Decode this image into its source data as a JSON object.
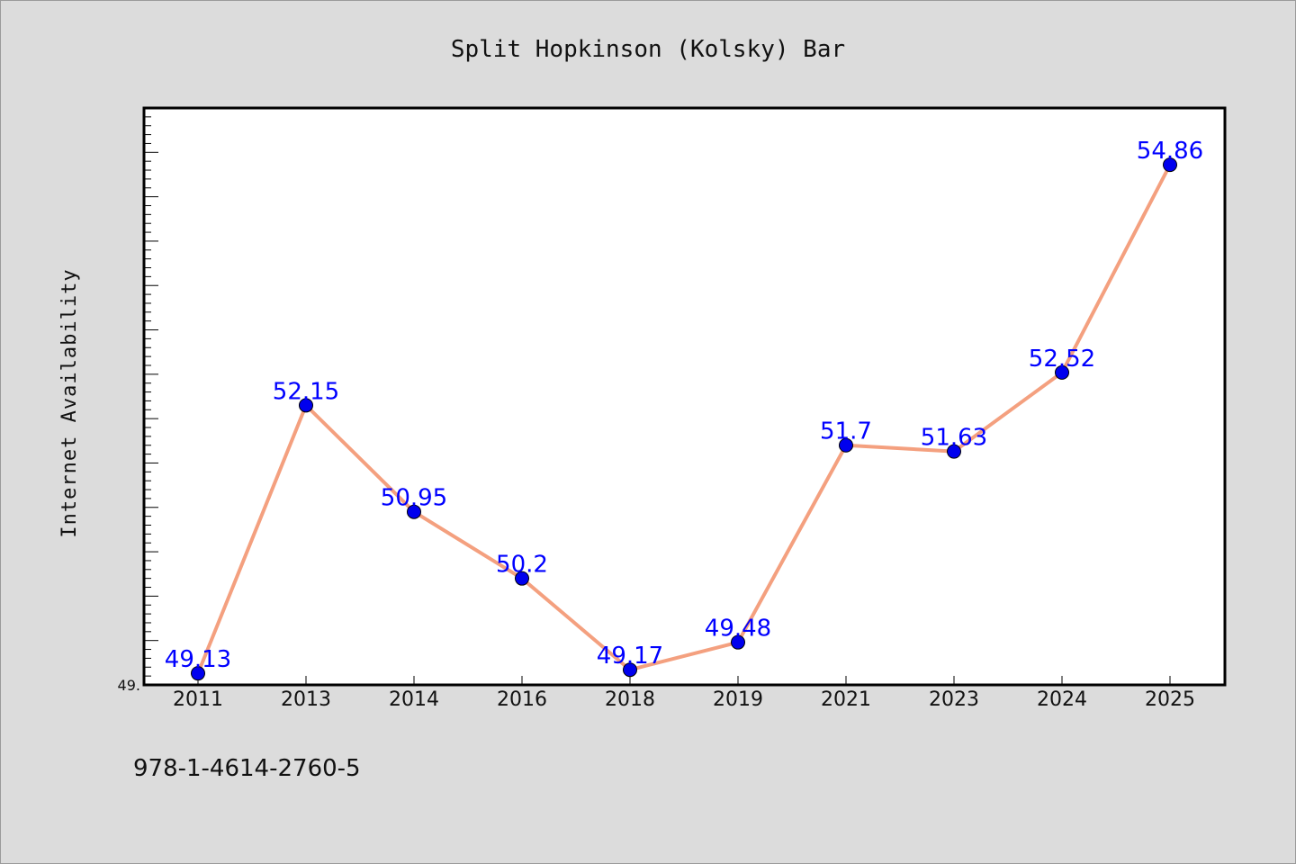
{
  "footer": {
    "isbn": "978-1-4614-2760-5"
  },
  "colors": {
    "background": "#dcdcdc",
    "plot_background": "#ffffff",
    "line": "#f4a07f",
    "marker": "#0000ee",
    "label": "#0000ff"
  },
  "chart_data": {
    "type": "line",
    "title": "Split Hopkinson (Kolsky) Bar",
    "xlabel": "",
    "ylabel": "Internet Availability",
    "categories": [
      "2011",
      "2013",
      "2014",
      "2016",
      "2018",
      "2019",
      "2021",
      "2023",
      "2024",
      "2025"
    ],
    "series": [
      {
        "values": [
          49.13,
          52.15,
          50.95,
          50.2,
          49.17,
          49.48,
          51.7,
          51.63,
          52.52,
          54.86
        ],
        "labels": [
          "49.13",
          "52.15",
          "50.95",
          "50.2",
          "49.17",
          "49.48",
          "51.7",
          "51.63",
          "52.52",
          "54.86"
        ]
      }
    ],
    "ylim": [
      49.0,
      55.5
    ],
    "y_tick_labels": [
      "49."
    ],
    "grid": false,
    "legend": "none"
  }
}
